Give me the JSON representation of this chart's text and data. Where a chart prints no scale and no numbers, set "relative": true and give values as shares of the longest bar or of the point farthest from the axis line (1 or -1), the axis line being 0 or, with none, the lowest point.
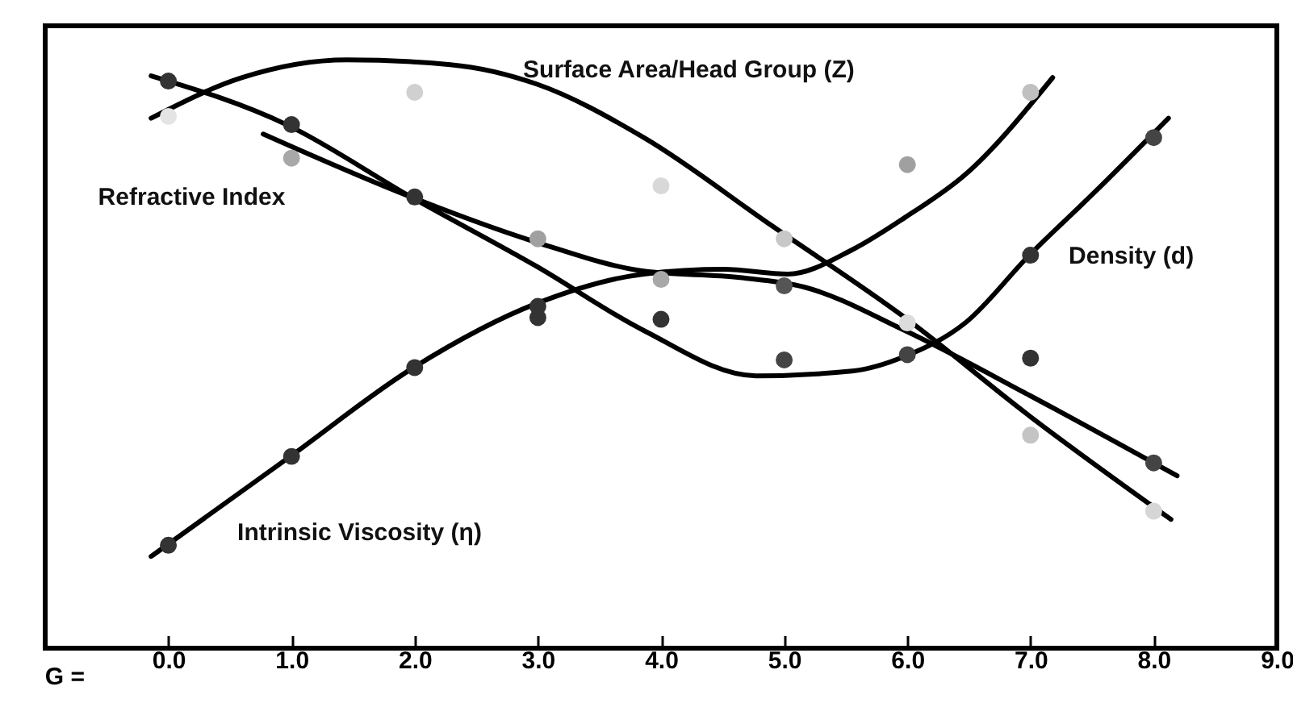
{
  "chart_data": {
    "type": "line",
    "relative": true,
    "xlabel": "G =",
    "xlim": [
      -1,
      9
    ],
    "xticks": [
      {
        "value": 0,
        "label": "0.0"
      },
      {
        "value": 1,
        "label": "1.0"
      },
      {
        "value": 2,
        "label": "2.0"
      },
      {
        "value": 3,
        "label": "3.0"
      },
      {
        "value": 4,
        "label": "4.0"
      },
      {
        "value": 5,
        "label": "5.0"
      },
      {
        "value": 6,
        "label": "6.0"
      },
      {
        "value": 7,
        "label": "7.0"
      },
      {
        "value": 8,
        "label": "8.0"
      },
      {
        "value": 9,
        "label": "9.0"
      }
    ],
    "line_style": "solid",
    "series": [
      {
        "name": "Surface Area/Head Group (Z)",
        "marker": "none",
        "color": "#000000",
        "x": [
          -0.14,
          0.6,
          1.45,
          2.29,
          2.99,
          3.86,
          4.9,
          5.98,
          6.99,
          8.14
        ],
        "values": [
          0.901,
          0.97,
          1.0,
          0.992,
          0.959,
          0.868,
          0.718,
          0.562,
          0.395,
          0.219
        ]
      },
      {
        "name": "Refractive Index",
        "marker": "none",
        "color": "#000000",
        "x": [
          0.77,
          1.97,
          2.99,
          3.86,
          4.64,
          5.16,
          5.98,
          6.99,
          8.19
        ],
        "values": [
          0.874,
          0.767,
          0.69,
          0.641,
          0.63,
          0.614,
          0.54,
          0.43,
          0.293
        ]
      },
      {
        "name": "Density (d)",
        "marker": "none",
        "color": "#000000",
        "x": [
          -0.14,
          0.96,
          1.97,
          2.99,
          3.86,
          4.77,
          5.55,
          5.98,
          6.47,
          6.99,
          7.51,
          8.12
        ],
        "values": [
          0.973,
          0.89,
          0.767,
          0.649,
          0.54,
          0.463,
          0.471,
          0.496,
          0.553,
          0.668,
          0.773,
          0.901
        ]
      },
      {
        "name": "Intrinsic Viscosity (η)",
        "marker": "none",
        "color": "#000000",
        "x": [
          -0.14,
          0.99,
          1.99,
          2.99,
          3.86,
          4.51,
          5.03,
          5.55,
          5.98,
          6.47,
          7.18
        ],
        "values": [
          0.156,
          0.326,
          0.477,
          0.586,
          0.636,
          0.644,
          0.636,
          0.677,
          0.732,
          0.805,
          0.97
        ]
      },
      {
        "type": "scatter",
        "marker": "circle",
        "x": [
          0,
          2,
          4,
          5,
          7,
          8
        ],
        "values": [
          0.904,
          0.945,
          0.786,
          0.696,
          0.362,
          0.233
        ],
        "colors": [
          "#e4e4e4",
          "#d0d0d0",
          "#d8d8d8",
          "#c8c8c8",
          "#c4c4c4",
          "#d6d6d6"
        ]
      },
      {
        "type": "scatter",
        "marker": "circle",
        "x": [
          1,
          3,
          6,
          7,
          8
        ],
        "values": [
          0.833,
          0.696,
          0.553,
          0.493,
          0.315
        ],
        "colors": [
          "#a8a8a8",
          "#a0a0a0",
          "#dcdcdc",
          "#333333",
          "#444444"
        ]
      },
      {
        "type": "scatter",
        "marker": "circle",
        "x": [
          0,
          1,
          2,
          3,
          4,
          5,
          6,
          7,
          8
        ],
        "values": [
          0.964,
          0.89,
          0.767,
          0.562,
          0.559,
          0.49,
          0.499,
          0.668,
          0.868
        ],
        "colors": [
          "#333333",
          "#333333",
          "#333333",
          "#333333",
          "#333333",
          "#444444",
          "#444444",
          "#333333",
          "#444444"
        ]
      },
      {
        "type": "scatter",
        "marker": "circle",
        "x": [
          0,
          1,
          2,
          3,
          4,
          5,
          6,
          7
        ],
        "values": [
          0.175,
          0.326,
          0.477,
          0.581,
          0.627,
          0.616,
          0.822,
          0.945
        ],
        "colors": [
          "#333333",
          "#333333",
          "#333333",
          "#333333",
          "#a8a8a8",
          "#555555",
          "#a0a0a0",
          "#c0c0c0"
        ]
      }
    ]
  }
}
